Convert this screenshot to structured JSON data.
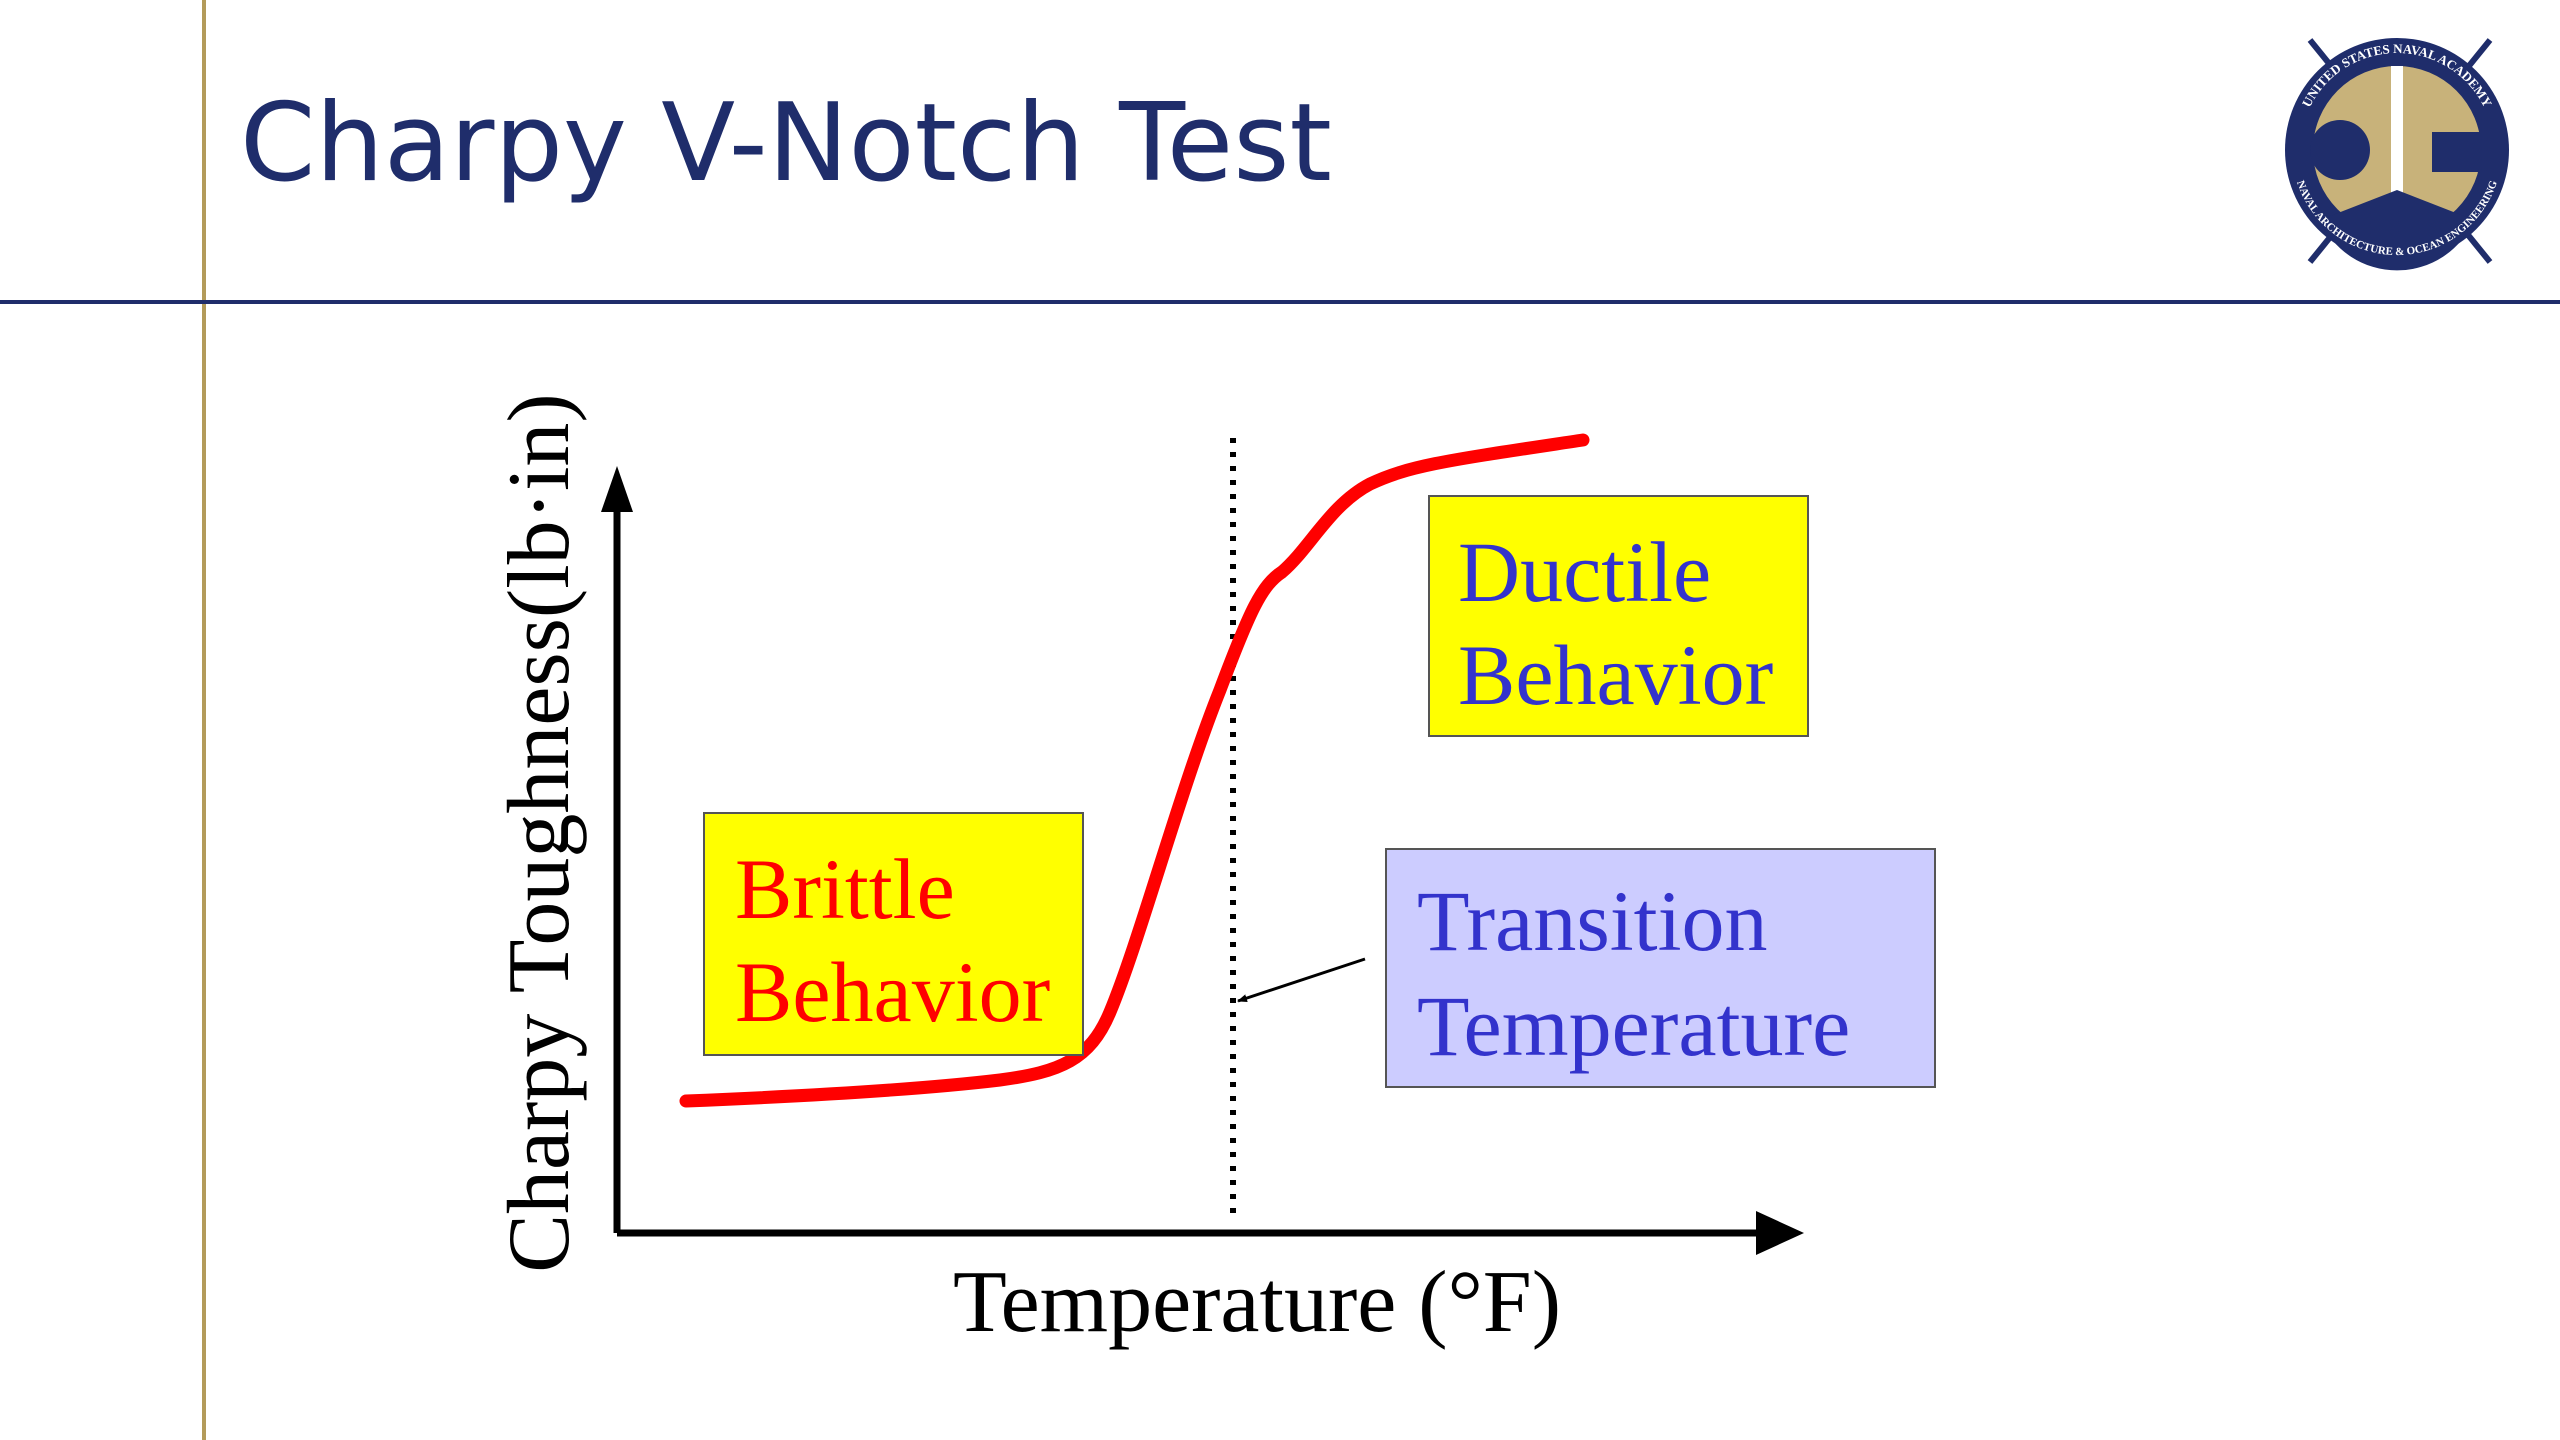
{
  "header": {
    "title": "Charpy V-Notch Test"
  },
  "logo": {
    "top_text": "UNITED STATES NAVAL ACADEMY",
    "bottom_text": "NAVAL ARCHITECTURE & OCEAN ENGINEERING"
  },
  "diagram": {
    "y_axis_label": "Charpy Toughness(lb·in)",
    "x_axis_label": "Temperature (°F)",
    "boxes": [
      {
        "lines": [
          "Brittle",
          "Behavior"
        ]
      },
      {
        "lines": [
          "Ductile",
          "Behavior"
        ]
      },
      {
        "lines": [
          "Transition",
          "Temperature"
        ]
      }
    ]
  }
}
